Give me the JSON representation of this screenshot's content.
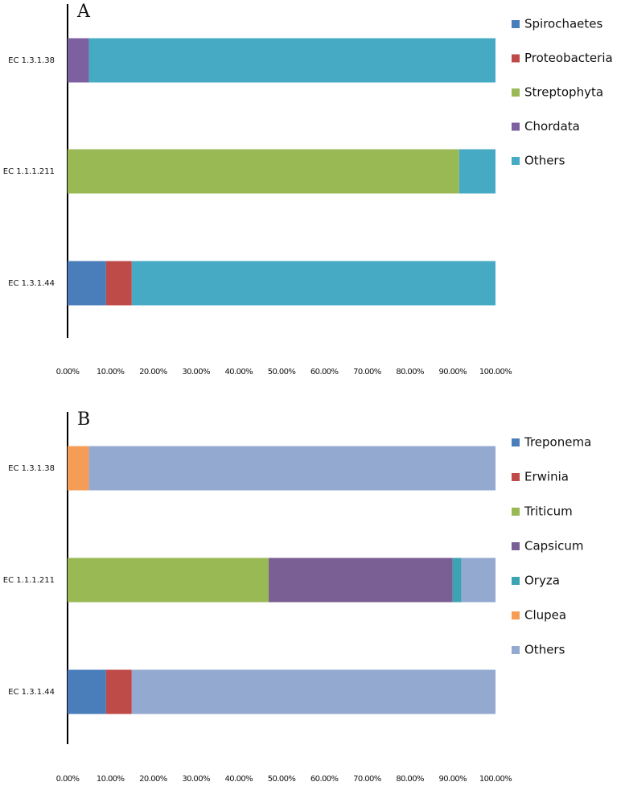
{
  "chart_data": [
    {
      "type": "bar",
      "orientation": "horizontal",
      "stacked": true,
      "title": "A",
      "categories": [
        "EC 1.3.1.38",
        "EC 1.1.1.211",
        "EC 1.3.1.44"
      ],
      "series": [
        {
          "name": "Spirochaetes",
          "color": "#4a7ebb",
          "values": [
            0,
            0,
            9
          ]
        },
        {
          "name": "Proteobacteria",
          "color": "#be4b48",
          "values": [
            0,
            0,
            6
          ]
        },
        {
          "name": "Streptophyta",
          "color": "#98b954",
          "values": [
            0,
            91.5,
            0
          ]
        },
        {
          "name": "Chordata",
          "color": "#7d60a0",
          "values": [
            5,
            0,
            0
          ]
        },
        {
          "name": "Others",
          "color": "#46aac5",
          "values": [
            95,
            8.5,
            85
          ]
        }
      ],
      "xlim": [
        0,
        100
      ],
      "xticks": [
        {
          "value": 0,
          "label": "0.00%"
        },
        {
          "value": 10,
          "label": "10.00%"
        },
        {
          "value": 20,
          "label": "20.00%"
        },
        {
          "value": 30,
          "label": "30.00%"
        },
        {
          "value": 40,
          "label": "40.00%"
        },
        {
          "value": 50,
          "label": "50.00%"
        },
        {
          "value": 60,
          "label": "60.00%"
        },
        {
          "value": 70,
          "label": "70.00%"
        },
        {
          "value": 80,
          "label": "80.00%"
        },
        {
          "value": 90,
          "label": "90.00%"
        },
        {
          "value": 100,
          "label": "100.00%"
        }
      ],
      "grid": false,
      "legend": "right"
    },
    {
      "type": "bar",
      "orientation": "horizontal",
      "stacked": true,
      "title": "B",
      "categories": [
        "EC 1.3.1.38",
        "EC 1.1.1.211",
        "EC 1.3.1.44"
      ],
      "series": [
        {
          "name": "Treponema",
          "color": "#4a7ebb",
          "values": [
            0,
            0,
            9
          ]
        },
        {
          "name": "Erwinia",
          "color": "#be4b48",
          "values": [
            0,
            0,
            6
          ]
        },
        {
          "name": "Triticum",
          "color": "#98b954",
          "values": [
            0,
            47,
            0
          ]
        },
        {
          "name": "Capsicum",
          "color": "#7a5f94",
          "values": [
            0,
            43,
            0
          ]
        },
        {
          "name": "Oryza",
          "color": "#3ca3b2",
          "values": [
            0,
            2,
            0
          ]
        },
        {
          "name": "Clupea",
          "color": "#f59d56",
          "values": [
            5,
            0,
            0
          ]
        },
        {
          "name": "Others",
          "color": "#93a9cf",
          "values": [
            95,
            8,
            85
          ]
        }
      ],
      "xlim": [
        0,
        100
      ],
      "xticks": [
        {
          "value": 0,
          "label": "0.00%"
        },
        {
          "value": 10,
          "label": "10.00%"
        },
        {
          "value": 20,
          "label": "20.00%"
        },
        {
          "value": 30,
          "label": "30.00%"
        },
        {
          "value": 40,
          "label": "40.00%"
        },
        {
          "value": 50,
          "label": "50.00%"
        },
        {
          "value": 60,
          "label": "60.00%"
        },
        {
          "value": 70,
          "label": "70.00%"
        },
        {
          "value": 80,
          "label": "80.00%"
        },
        {
          "value": 90,
          "label": "90.00%"
        },
        {
          "value": 100,
          "label": "100.00%"
        }
      ],
      "grid": false,
      "legend": "right"
    }
  ]
}
